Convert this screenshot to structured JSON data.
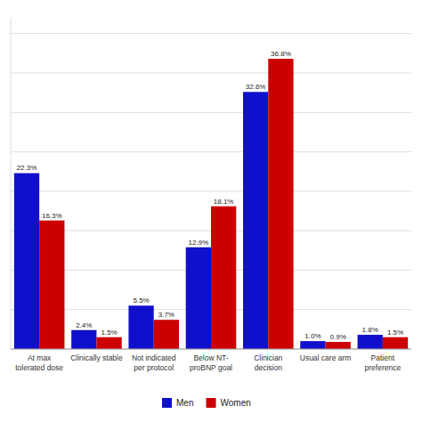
{
  "chart_data": {
    "type": "bar",
    "categories": [
      "At max\ntolerated dose",
      "Clinically stable",
      "Not indicated\nper protocol",
      "Below NT-\nproBNP goal",
      "Clinician\ndecision",
      "Usual care arm",
      "Patient\npreference"
    ],
    "series": [
      {
        "name": "Men",
        "color": "#1010CC",
        "values": [
          22.3,
          2.4,
          5.5,
          12.9,
          32.6,
          1.0,
          1.8
        ],
        "value_labels": [
          "22.3%",
          "2.4%",
          "5.5%",
          "12.9%",
          "32.6%",
          "1.0%",
          "1.8%"
        ]
      },
      {
        "name": "Women",
        "color": "#CC0000",
        "values": [
          16.3,
          1.5,
          3.7,
          18.1,
          36.8,
          0.9,
          1.5
        ],
        "value_labels": [
          "16.3%",
          "1.5%",
          "3.7%",
          "18.1%",
          "36.8%",
          "0.9%",
          "1.5%"
        ]
      }
    ],
    "ylim": [
      0,
      42
    ],
    "yticks": [
      0,
      5,
      10,
      15,
      20,
      25,
      30,
      35,
      40
    ],
    "grid": true,
    "legend": "bottom",
    "data_labels": true,
    "tick_labels": "x"
  }
}
